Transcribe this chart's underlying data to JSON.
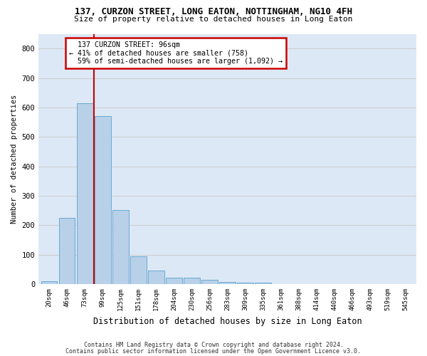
{
  "title_line1": "137, CURZON STREET, LONG EATON, NOTTINGHAM, NG10 4FH",
  "title_line2": "Size of property relative to detached houses in Long Eaton",
  "xlabel": "Distribution of detached houses by size in Long Eaton",
  "ylabel": "Number of detached properties",
  "footer_line1": "Contains HM Land Registry data © Crown copyright and database right 2024.",
  "footer_line2": "Contains public sector information licensed under the Open Government Licence v3.0.",
  "bar_labels": [
    "20sqm",
    "46sqm",
    "73sqm",
    "99sqm",
    "125sqm",
    "151sqm",
    "178sqm",
    "204sqm",
    "230sqm",
    "256sqm",
    "283sqm",
    "309sqm",
    "335sqm",
    "361sqm",
    "388sqm",
    "414sqm",
    "440sqm",
    "466sqm",
    "493sqm",
    "519sqm",
    "545sqm"
  ],
  "bar_values": [
    10,
    225,
    615,
    570,
    252,
    95,
    45,
    22,
    22,
    15,
    8,
    5,
    5,
    0,
    0,
    0,
    0,
    0,
    0,
    0,
    0
  ],
  "bar_color": "#b8d0e8",
  "bar_edge_color": "#6aaad4",
  "property_label": "137 CURZON STREET: 96sqm",
  "pct_smaller": "41% of detached houses are smaller (758)",
  "pct_larger": "59% of semi-detached houses are larger (1,092)",
  "annotation_box_color": "#ffffff",
  "annotation_border_color": "#cc0000",
  "vline_color": "#cc0000",
  "grid_color": "#c8c8c8",
  "background_color": "#dce8f5",
  "fig_background": "#ffffff",
  "ylim": [
    0,
    850
  ],
  "yticks": [
    0,
    100,
    200,
    300,
    400,
    500,
    600,
    700,
    800
  ]
}
